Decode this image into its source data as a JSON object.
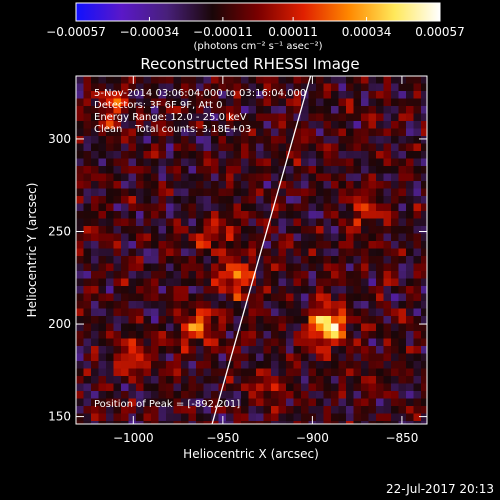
{
  "colors": {
    "background": "#000000",
    "text": "#ffffff",
    "limb": "#ffffff"
  },
  "chart_data": {
    "type": "heatmap",
    "title": "Reconstructed RHESSI Image",
    "xlabel": "Heliocentric X (arcsec)",
    "ylabel": "Heliocentric Y (arcsec)",
    "xlim": [
      -1032,
      -836
    ],
    "ylim": [
      146,
      334
    ],
    "x_ticks": [
      -1000,
      -950,
      -900,
      -850
    ],
    "x_tick_labels": [
      "−1000",
      "−950",
      "−900",
      "−850"
    ],
    "y_ticks": [
      150,
      200,
      250,
      300
    ],
    "y_tick_labels": [
      "150",
      "200",
      "250",
      "300"
    ],
    "grid": false,
    "colorbar": {
      "colormap": [
        "#1010ff",
        "#5a18c8",
        "#48207a",
        "#1a0608",
        "#7a0000",
        "#e02000",
        "#ff8800",
        "#ffe85a",
        "#ffffff"
      ],
      "range": [
        -0.00057,
        0.00057
      ],
      "ticks": [
        -0.00057,
        -0.00034,
        -0.00011,
        0.00011,
        0.00034,
        0.00057
      ],
      "tick_labels": [
        "−0.00057",
        "−0.00034",
        "−0.00011",
        "0.00011",
        "0.00034",
        "0.00057"
      ],
      "unit_label": "(photons cm⁻² s⁻¹ asec⁻²)"
    },
    "annotations": [
      "5-Nov-2014 03:06:04.000 to 03:16:04.000",
      "Detectors: 3F 6F 9F, Att 0",
      "Energy Range: 12.0 - 25.0 keV",
      "Clean    Total counts: 3.18E+03"
    ],
    "peak_label": "Position of Peak = [-892,201]",
    "peak": {
      "x": -892,
      "y": 201
    },
    "sources": [
      {
        "x": -892,
        "y": 201,
        "value": 0.00057
      },
      {
        "x": -943,
        "y": 226,
        "value": 0.00036
      },
      {
        "x": -964,
        "y": 200,
        "value": 0.00032
      },
      {
        "x": -956,
        "y": 250,
        "value": 0.00026
      },
      {
        "x": -1000,
        "y": 184,
        "value": 0.00024
      },
      {
        "x": -873,
        "y": 262,
        "value": 0.0002
      },
      {
        "x": -1012,
        "y": 316,
        "value": 0.00022
      },
      {
        "x": -925,
        "y": 168,
        "value": 0.00018
      }
    ],
    "limb_line": [
      [
        -956,
        146
      ],
      [
        -901,
        334
      ]
    ],
    "timestamp": "22-Jul-2017 20:13"
  }
}
